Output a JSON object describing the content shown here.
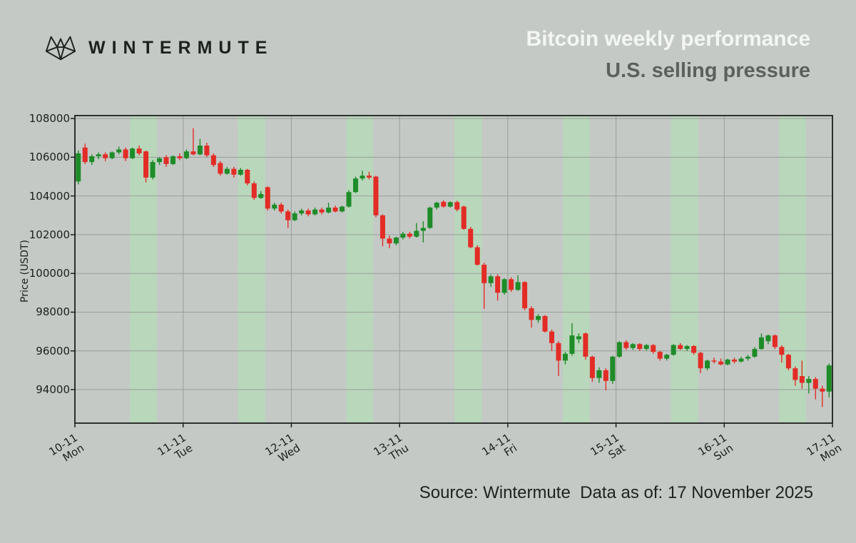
{
  "header": {
    "brand": "WINTERMUTE",
    "title": "Bitcoin weekly performance",
    "subtitle": "U.S. selling pressure"
  },
  "footer": {
    "source": "Source: Wintermute  Data as of: 17 November 2025"
  },
  "colors": {
    "background": "#c4c9c5",
    "title": "#f4f6f4",
    "subtitle": "#5c615f",
    "text": "#1d201e"
  },
  "chart_data": {
    "type": "candlestick",
    "title": "Bitcoin weekly performance",
    "subtitle": "U.S. selling pressure",
    "ylabel": "Price (USDT)",
    "grid": true,
    "y_ticks": [
      108000,
      106000,
      104000,
      102000,
      100000,
      98000,
      96000,
      94000
    ],
    "y_range": [
      92270,
      108150
    ],
    "x_ticks": [
      {
        "date": "10-11",
        "day": "Mon"
      },
      {
        "date": "11-11",
        "day": "Tue"
      },
      {
        "date": "12-11",
        "day": "Wed"
      },
      {
        "date": "13-11",
        "day": "Thu"
      },
      {
        "date": "14-11",
        "day": "Fri"
      },
      {
        "date": "15-11",
        "day": "Sat"
      },
      {
        "date": "16-11",
        "day": "Sun"
      },
      {
        "date": "17-11",
        "day": "Mon"
      }
    ],
    "days": 7,
    "candles_per_day": 16,
    "shaded_sessions": {
      "meaning": "U.S. trading hours (selling pressure)",
      "day_start_frac": 0.508,
      "day_end_frac": 0.758,
      "color": "#b9d7bb"
    },
    "colors": {
      "up": "#1e8c28",
      "down": "#e32c26",
      "band": "#b9d7bb",
      "grid": "#989e99",
      "frame": "#1c1f1d"
    },
    "candles": [
      [
        104750,
        106350,
        104600,
        106200
      ],
      [
        106500,
        106700,
        105650,
        105750
      ],
      [
        105750,
        106150,
        105600,
        106050
      ],
      [
        106050,
        106250,
        105900,
        106150
      ],
      [
        106150,
        106250,
        105800,
        105950
      ],
      [
        105950,
        106300,
        105900,
        106250
      ],
      [
        106250,
        106550,
        106150,
        106400
      ],
      [
        106400,
        106500,
        105800,
        105950
      ],
      [
        105950,
        106500,
        105900,
        106450
      ],
      [
        106450,
        106600,
        106100,
        106200
      ],
      [
        106300,
        106350,
        104700,
        104950
      ],
      [
        104950,
        105850,
        104850,
        105750
      ],
      [
        105750,
        106000,
        105600,
        105950
      ],
      [
        106000,
        106100,
        105500,
        105650
      ],
      [
        105650,
        106100,
        105600,
        106050
      ],
      [
        106050,
        106200,
        105850,
        105950
      ],
      [
        105950,
        106400,
        105900,
        106300
      ],
      [
        106300,
        107500,
        106100,
        106150
      ],
      [
        106150,
        106950,
        106100,
        106600
      ],
      [
        106600,
        106750,
        106000,
        106100
      ],
      [
        106100,
        106200,
        105500,
        105600
      ],
      [
        105700,
        105800,
        105050,
        105150
      ],
      [
        105150,
        105500,
        105100,
        105400
      ],
      [
        105400,
        105500,
        104950,
        105100
      ],
      [
        105100,
        105450,
        105050,
        105350
      ],
      [
        105350,
        105400,
        104550,
        104650
      ],
      [
        104650,
        104750,
        103800,
        103900
      ],
      [
        103900,
        104250,
        103850,
        104100
      ],
      [
        104450,
        104500,
        103250,
        103350
      ],
      [
        103350,
        103650,
        103250,
        103550
      ],
      [
        103550,
        103650,
        103100,
        103200
      ],
      [
        103200,
        103300,
        102350,
        102750
      ],
      [
        102750,
        103200,
        102700,
        103100
      ],
      [
        103100,
        103350,
        103000,
        103250
      ],
      [
        103250,
        103350,
        102950,
        103050
      ],
      [
        103050,
        103400,
        103000,
        103300
      ],
      [
        103300,
        103400,
        103050,
        103150
      ],
      [
        103150,
        103650,
        103100,
        103400
      ],
      [
        103400,
        103500,
        103150,
        103200
      ],
      [
        103200,
        103500,
        103150,
        103450
      ],
      [
        103450,
        104300,
        103400,
        104200
      ],
      [
        104200,
        105000,
        104150,
        104900
      ],
      [
        104900,
        105300,
        104800,
        105050
      ],
      [
        105050,
        105250,
        104850,
        104950
      ],
      [
        105000,
        105050,
        102900,
        103000
      ],
      [
        103000,
        103050,
        101400,
        101800
      ],
      [
        101800,
        101950,
        101300,
        101550
      ],
      [
        101550,
        101900,
        101450,
        101850
      ],
      [
        101850,
        102150,
        101750,
        102050
      ],
      [
        102050,
        102150,
        101800,
        101900
      ],
      [
        101900,
        102600,
        101850,
        102200
      ],
      [
        102200,
        102700,
        101600,
        102350
      ],
      [
        102350,
        103450,
        102300,
        103400
      ],
      [
        103400,
        103700,
        103300,
        103650
      ],
      [
        103700,
        103780,
        103400,
        103450
      ],
      [
        103450,
        103720,
        103400,
        103680
      ],
      [
        103680,
        103750,
        103200,
        103300
      ],
      [
        103450,
        103500,
        102250,
        102300
      ],
      [
        102300,
        102400,
        101300,
        101350
      ],
      [
        101350,
        101450,
        100400,
        100450
      ],
      [
        100450,
        100550,
        98170,
        99500
      ],
      [
        99500,
        99950,
        99300,
        99850
      ],
      [
        99850,
        99950,
        98600,
        99000
      ],
      [
        99000,
        99750,
        98900,
        99700
      ],
      [
        99700,
        99800,
        99050,
        99150
      ],
      [
        99150,
        99900,
        99100,
        99550
      ],
      [
        99550,
        99600,
        98100,
        98200
      ],
      [
        98200,
        98300,
        97200,
        97600
      ],
      [
        97600,
        97900,
        97450,
        97800
      ],
      [
        97800,
        97850,
        96950,
        97000
      ],
      [
        97000,
        97100,
        96000,
        96400
      ],
      [
        96400,
        96500,
        94700,
        95500
      ],
      [
        95500,
        95950,
        95300,
        95850
      ],
      [
        95850,
        97430,
        95750,
        96800
      ],
      [
        96600,
        96900,
        96400,
        96750
      ],
      [
        96900,
        96950,
        95550,
        95700
      ],
      [
        95700,
        95750,
        94400,
        94600
      ],
      [
        94600,
        95150,
        94350,
        95000
      ],
      [
        95000,
        95100,
        93960,
        94450
      ],
      [
        94450,
        95750,
        94300,
        95700
      ],
      [
        95700,
        96500,
        95650,
        96450
      ],
      [
        96450,
        96550,
        96050,
        96150
      ],
      [
        96150,
        96400,
        96050,
        96350
      ],
      [
        96350,
        96400,
        96000,
        96100
      ],
      [
        96100,
        96350,
        96000,
        96300
      ],
      [
        96300,
        96350,
        95850,
        95950
      ],
      [
        95950,
        96000,
        95500,
        95600
      ],
      [
        95600,
        95850,
        95500,
        95800
      ],
      [
        95800,
        96350,
        95750,
        96300
      ],
      [
        96300,
        96400,
        96050,
        96100
      ],
      [
        96100,
        96300,
        96000,
        96250
      ],
      [
        96250,
        96300,
        95800,
        95900
      ],
      [
        95900,
        95950,
        94850,
        95100
      ],
      [
        95100,
        95550,
        95000,
        95500
      ],
      [
        95500,
        95650,
        95350,
        95450
      ],
      [
        95450,
        95600,
        95250,
        95300
      ],
      [
        95300,
        95600,
        95250,
        95550
      ],
      [
        95550,
        95650,
        95350,
        95450
      ],
      [
        95450,
        95700,
        95400,
        95600
      ],
      [
        95600,
        95800,
        95500,
        95700
      ],
      [
        95700,
        96200,
        95650,
        96100
      ],
      [
        96100,
        96900,
        96050,
        96700
      ],
      [
        96500,
        96850,
        96350,
        96800
      ],
      [
        96800,
        96850,
        96100,
        96200
      ],
      [
        96200,
        96300,
        95400,
        95800
      ],
      [
        95800,
        95850,
        95000,
        95100
      ],
      [
        95100,
        95200,
        94200,
        94500
      ],
      [
        94700,
        95500,
        94050,
        94350
      ],
      [
        94350,
        94700,
        93800,
        94550
      ],
      [
        94550,
        94650,
        93500,
        94050
      ],
      [
        94050,
        94200,
        93100,
        93900
      ],
      [
        93900,
        95350,
        93600,
        95250
      ]
    ]
  }
}
